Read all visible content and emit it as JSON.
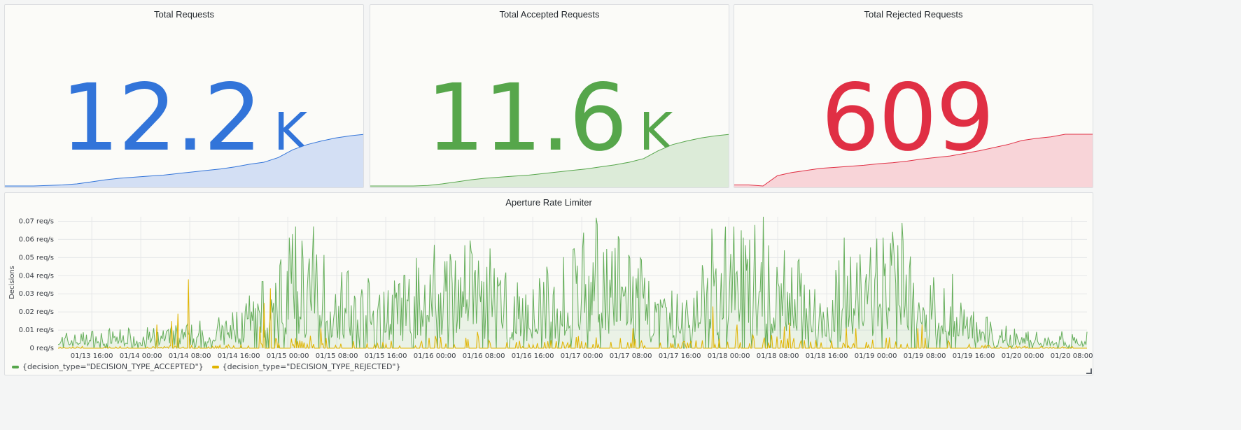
{
  "colors": {
    "blue": "#3274d9",
    "blue_fill": "#d3dff4",
    "green": "#56a64b",
    "green_fill": "#dcebd8",
    "red": "#e02f44",
    "red_fill": "#f8d4d8",
    "yellow": "#e0b400",
    "grid": "#e6e7e8"
  },
  "stats": [
    {
      "title": "Total Requests",
      "value": "12.2",
      "unit": "K",
      "color": "#3274d9",
      "fill": "#d3dff4",
      "spark": [
        0,
        0,
        0,
        0.01,
        0.02,
        0.04,
        0.08,
        0.12,
        0.15,
        0.17,
        0.19,
        0.21,
        0.24,
        0.27,
        0.3,
        0.33,
        0.37,
        0.42,
        0.46,
        0.55,
        0.7,
        0.8,
        0.87,
        0.93,
        0.97,
        1.0
      ]
    },
    {
      "title": "Total Accepted Requests",
      "value": "11.6",
      "unit": "K",
      "color": "#56a64b",
      "fill": "#dcebd8",
      "spark": [
        0,
        0,
        0,
        0,
        0.01,
        0.04,
        0.08,
        0.12,
        0.15,
        0.17,
        0.19,
        0.21,
        0.24,
        0.27,
        0.3,
        0.33,
        0.37,
        0.41,
        0.46,
        0.53,
        0.68,
        0.8,
        0.87,
        0.93,
        0.97,
        1.0
      ]
    },
    {
      "title": "Total Rejected Requests",
      "value": "609",
      "unit": "",
      "color": "#e02f44",
      "fill": "#f8d4d8",
      "spark": [
        0.02,
        0.02,
        0.0,
        0.2,
        0.26,
        0.3,
        0.34,
        0.36,
        0.38,
        0.4,
        0.43,
        0.45,
        0.48,
        0.52,
        0.55,
        0.58,
        0.63,
        0.68,
        0.74,
        0.8,
        0.88,
        0.92,
        0.95,
        1.0,
        1.0,
        1.0
      ]
    }
  ],
  "chart_data": {
    "type": "line",
    "title": "Aperture Rate Limiter",
    "ylabel": "Decisions",
    "xlabel": "",
    "ylim": [
      0,
      0.0725
    ],
    "y_ticks": [
      "0 req/s",
      "0.01 req/s",
      "0.02 req/s",
      "0.03 req/s",
      "0.04 req/s",
      "0.05 req/s",
      "0.06 req/s",
      "0.07 req/s"
    ],
    "x_ticks": [
      "01/13 16:00",
      "01/14 00:00",
      "01/14 08:00",
      "01/14 16:00",
      "01/15 00:00",
      "01/15 08:00",
      "01/15 16:00",
      "01/16 00:00",
      "01/16 08:00",
      "01/16 16:00",
      "01/17 00:00",
      "01/17 08:00",
      "01/17 16:00",
      "01/18 00:00",
      "01/18 08:00",
      "01/18 16:00",
      "01/19 00:00",
      "01/19 08:00",
      "01/19 16:00",
      "01/20 00:00",
      "01/20 08:00"
    ],
    "x_tick_hours": [
      16,
      24,
      32,
      40,
      48,
      56,
      64,
      72,
      80,
      88,
      96,
      104,
      112,
      120,
      128,
      136,
      144,
      152,
      160,
      168,
      176
    ],
    "x_range_hours": [
      10.5,
      178.5
    ],
    "series": [
      {
        "name": "{decision_type=\"DECISION_TYPE_ACCEPTED\"}",
        "color": "#56a64b",
        "envelope_hours": [
          10.5,
          20,
          30,
          38,
          44,
          47,
          50,
          54,
          58,
          62,
          68,
          72,
          76,
          80,
          84,
          88,
          92,
          96,
          100,
          104,
          108,
          112,
          116,
          120,
          124,
          128,
          132,
          136,
          140,
          144,
          148,
          152,
          156,
          160,
          164,
          172,
          178.5
        ],
        "envelope_levels": [
          0.004,
          0.005,
          0.006,
          0.008,
          0.018,
          0.026,
          0.031,
          0.029,
          0.02,
          0.016,
          0.02,
          0.029,
          0.031,
          0.026,
          0.018,
          0.016,
          0.022,
          0.03,
          0.032,
          0.026,
          0.016,
          0.015,
          0.025,
          0.034,
          0.035,
          0.03,
          0.022,
          0.018,
          0.024,
          0.031,
          0.031,
          0.025,
          0.02,
          0.01,
          0.006,
          0.004,
          0.004
        ],
        "peaks": [
          [
            24.5,
            0.004
          ],
          [
            32,
            0.008
          ],
          [
            48.3,
            0.061
          ],
          [
            71.9,
            0.057
          ],
          [
            81,
            0.055
          ],
          [
            96.2,
            0.055
          ],
          [
            99.6,
            0.053
          ],
          [
            119.4,
            0.067
          ],
          [
            122,
            0.065
          ],
          [
            124.2,
            0.068
          ],
          [
            138.8,
            0.061
          ],
          [
            145.2,
            0.061
          ],
          [
            147,
            0.056
          ],
          [
            156.8,
            0.015
          ]
        ]
      },
      {
        "name": "{decision_type=\"DECISION_TYPE_REJECTED\"}",
        "color": "#e0b400",
        "peaks": [
          [
            31.7,
            0.038
          ],
          [
            30.1,
            0.019
          ],
          [
            29.1,
            0.015
          ],
          [
            26.6,
            0.013
          ],
          [
            45.1,
            0.033
          ],
          [
            44.2,
            0.025
          ],
          [
            43.5,
            0.012
          ],
          [
            53.4,
            0.011
          ],
          [
            79,
            0.009
          ],
          [
            104.4,
            0.011
          ],
          [
            117.4,
            0.023
          ],
          [
            121.3,
            0.013
          ],
          [
            129.1,
            0.012
          ],
          [
            129.9,
            0.014
          ],
          [
            139.2,
            0.011
          ],
          [
            140.7,
            0.011
          ],
          [
            151.5,
            0.013
          ],
          [
            150.9,
            0.011
          ]
        ]
      }
    ],
    "legend_position": "bottom-left"
  }
}
